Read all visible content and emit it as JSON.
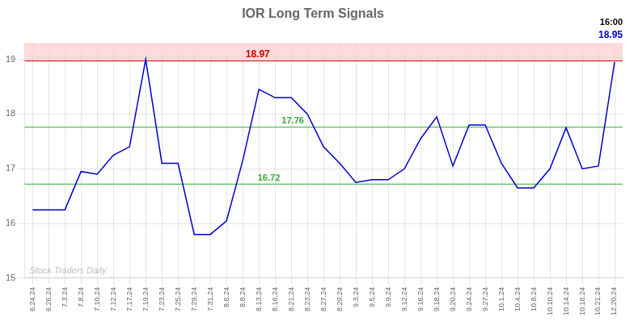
{
  "chart_data": {
    "type": "line",
    "title": "IOR Long Term Signals",
    "categories": [
      "6.24.24",
      "6.26.24",
      "7.3.24",
      "7.8.24",
      "7.10.24",
      "7.12.24",
      "7.17.24",
      "7.19.24",
      "7.23.24",
      "7.25.24",
      "7.29.24",
      "7.31.24",
      "8.6.24",
      "8.8.24",
      "8.13.24",
      "8.16.24",
      "8.21.24",
      "8.23.24",
      "8.27.24",
      "8.29.24",
      "9.3.24",
      "9.5.24",
      "9.9.24",
      "9.12.24",
      "9.16.24",
      "9.18.24",
      "9.20.24",
      "9.24.24",
      "9.27.24",
      "10.1.24",
      "10.4.24",
      "10.8.24",
      "10.10.24",
      "10.14.24",
      "10.16.24",
      "10.21.24",
      "12.20.24"
    ],
    "values": [
      16.25,
      16.25,
      16.25,
      16.95,
      16.9,
      17.25,
      17.4,
      19.0,
      17.1,
      17.1,
      15.8,
      15.8,
      16.05,
      17.15,
      18.45,
      18.3,
      18.3,
      18.0,
      17.4,
      17.1,
      16.75,
      16.8,
      16.8,
      17.0,
      17.55,
      17.95,
      17.05,
      17.8,
      17.8,
      17.1,
      16.65,
      16.65,
      17.0,
      17.75,
      17.0,
      17.05,
      18.95
    ],
    "color": "#0000cc",
    "ylim": [
      15.0,
      19.3
    ],
    "yticks": [
      15,
      16,
      17,
      18,
      19
    ],
    "grid": true,
    "band": {
      "from": 18.97,
      "to": 19.3,
      "color": "#ffcccc"
    },
    "hlines": [
      {
        "value": 18.97,
        "color": "#cc0000",
        "label": "18.97"
      },
      {
        "value": 17.76,
        "color": "#33aa33",
        "label": "17.76"
      },
      {
        "value": 16.72,
        "color": "#33aa33",
        "label": "16.72"
      }
    ],
    "annotations": [
      {
        "text": "16:00",
        "color": "#000000"
      },
      {
        "text": "18.95",
        "color": "#0000cc"
      },
      {
        "text": "Stock Traders Daily",
        "color": "#808080"
      }
    ]
  }
}
